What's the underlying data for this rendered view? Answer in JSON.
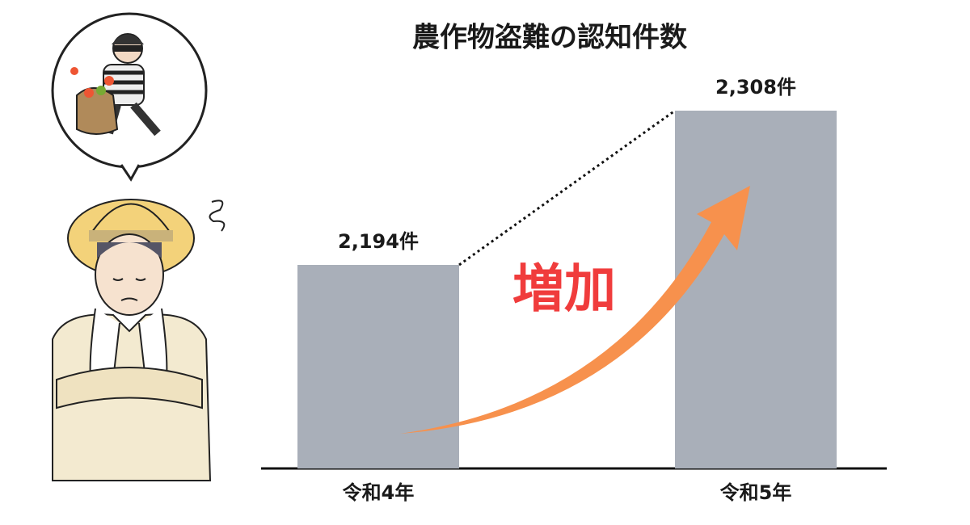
{
  "chart_data": {
    "type": "bar",
    "title": "農作物盗難の認知件数",
    "categories": [
      "令和4年",
      "令和5年"
    ],
    "values": [
      2194,
      2308
    ],
    "value_labels": [
      "2,194件",
      "2,308件"
    ],
    "color": "#a9afb9",
    "annotation": "増加",
    "annotation_color": "#f03c3c",
    "arrow_color": "#f7914d"
  }
}
